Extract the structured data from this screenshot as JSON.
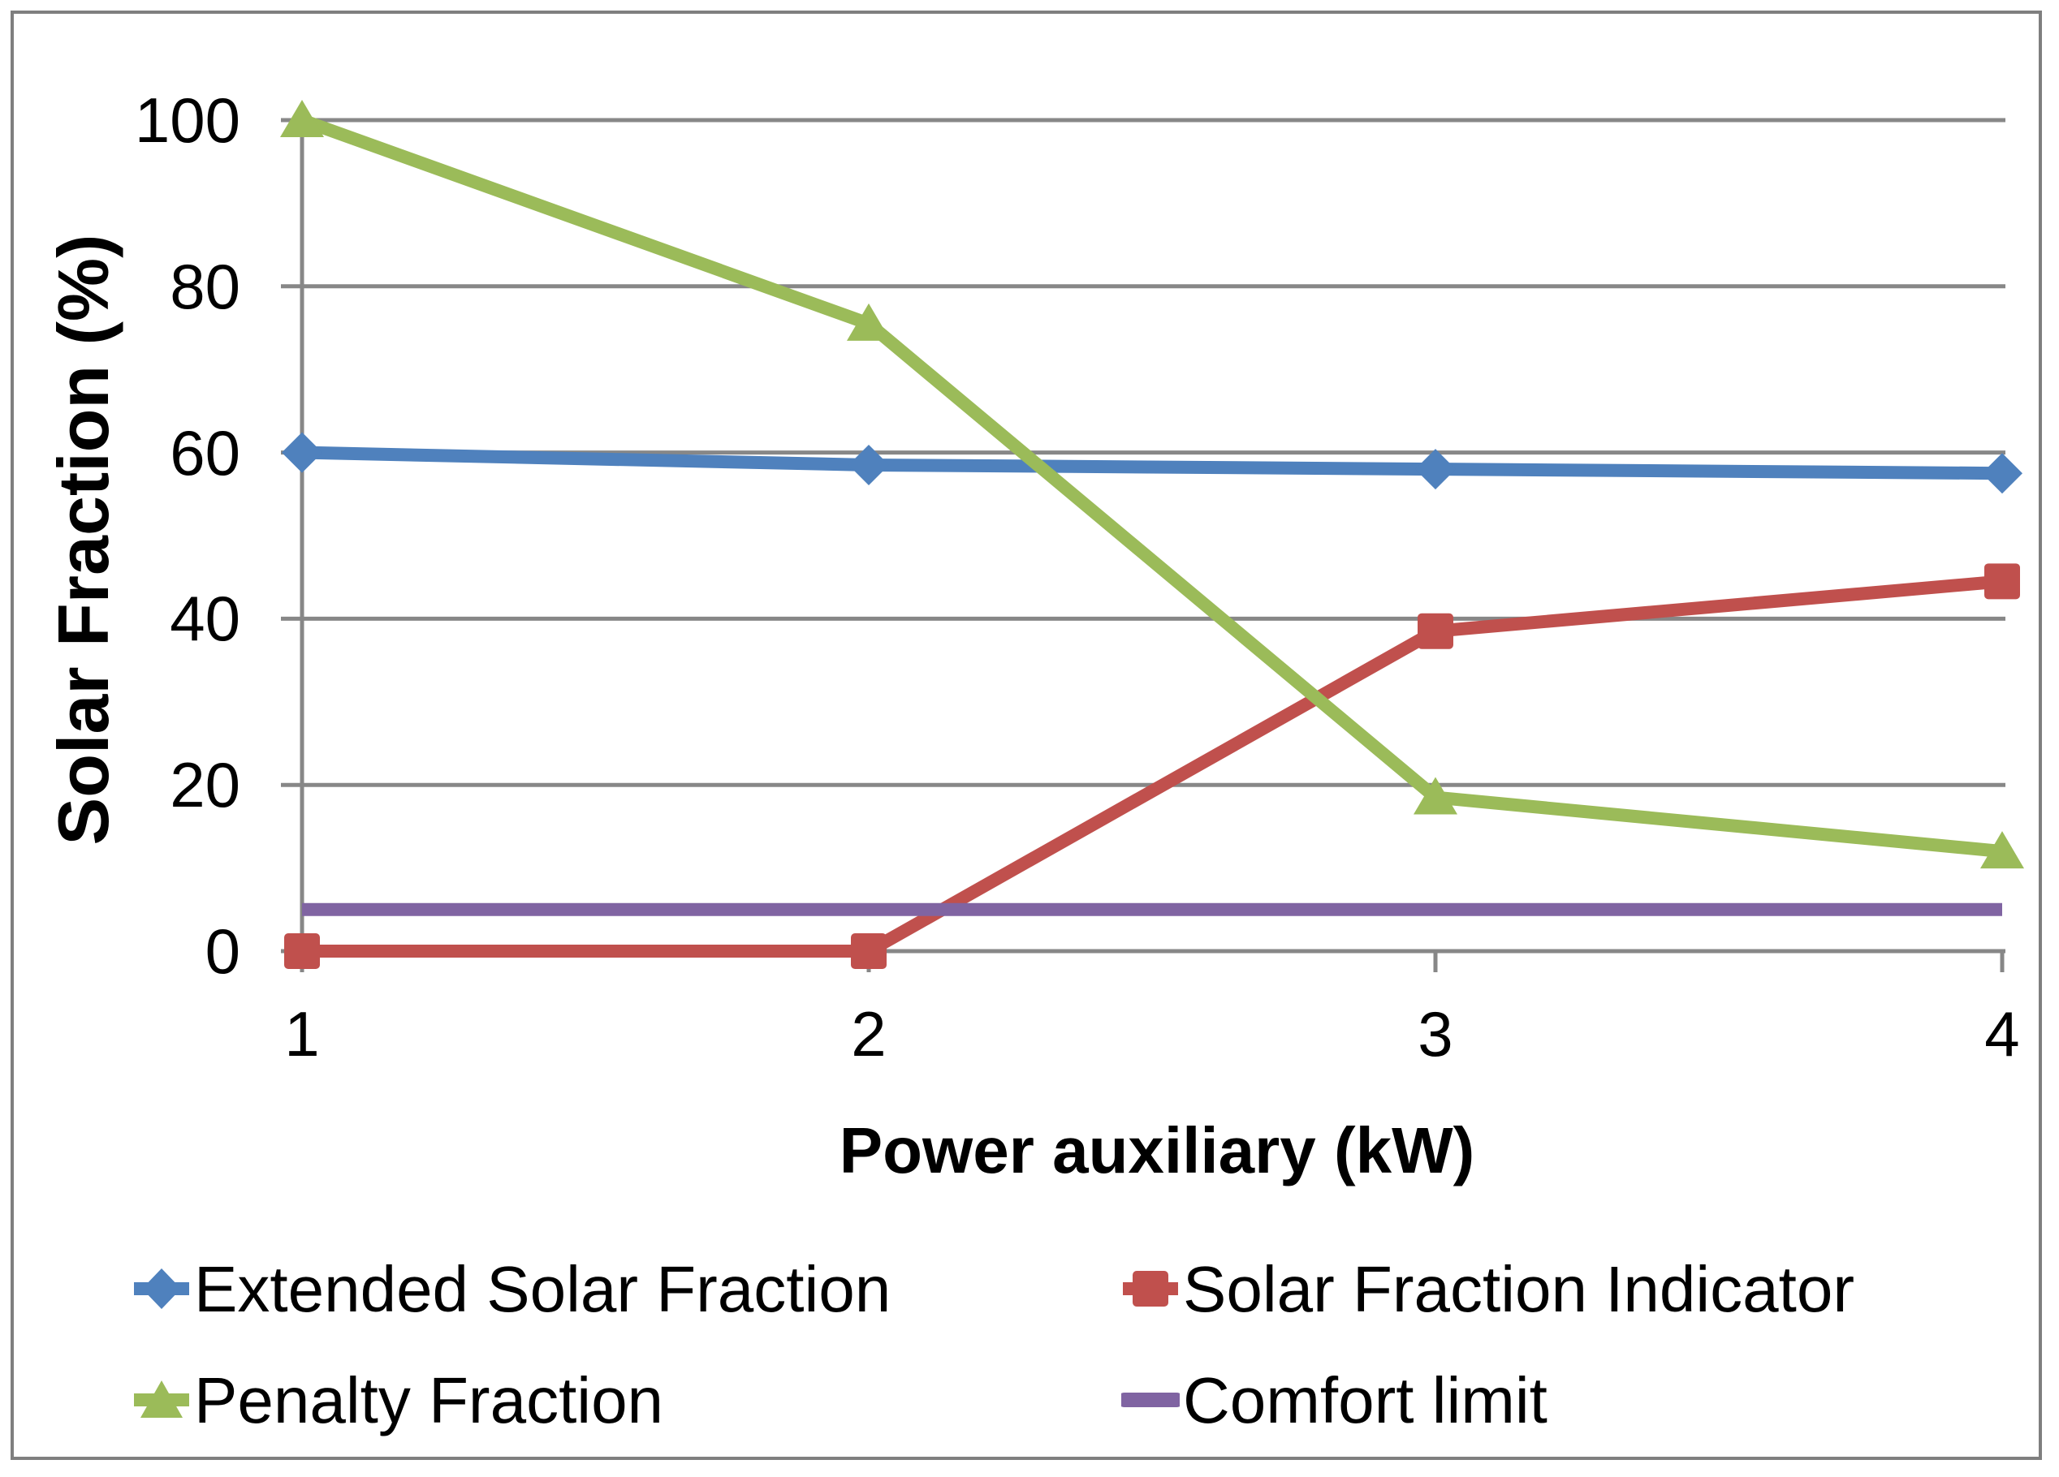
{
  "chart_data": {
    "type": "line",
    "title": "",
    "xlabel": "Power auxiliary (kW)",
    "ylabel": "Solar Fraction (%)",
    "x": [
      "1",
      "2",
      "3",
      "4"
    ],
    "yticks": [
      0,
      20,
      40,
      60,
      80,
      100
    ],
    "ylim": [
      0,
      100
    ],
    "xlim": [
      1,
      4
    ],
    "grid": "horizontal",
    "legend_position": "bottom, two columns",
    "series": [
      {
        "name": "Extended Solar Fraction",
        "color": "#4F81BD",
        "marker": "diamond",
        "values": [
          60,
          58.5,
          58,
          57.5
        ]
      },
      {
        "name": "Solar Fraction Indicator",
        "color": "#C0504D",
        "marker": "square",
        "values": [
          0,
          0,
          38.5,
          44.5
        ]
      },
      {
        "name": "Penalty Fraction",
        "color": "#9BBB59",
        "marker": "triangle",
        "values": [
          100,
          75.5,
          18.5,
          12
        ]
      },
      {
        "name": "Comfort limit",
        "color": "#8064A2",
        "marker": "none",
        "values": [
          5,
          5,
          5,
          5
        ]
      }
    ],
    "colors": {
      "gridline": "#878787",
      "axis": "#878787",
      "border": "#7F7F7F",
      "text": "#000000"
    }
  }
}
